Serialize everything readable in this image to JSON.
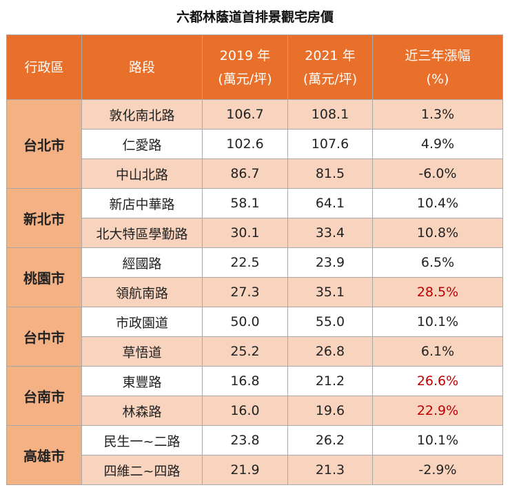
{
  "title": "六都林蔭道首排景觀宅房價",
  "chart_data": {
    "type": "table",
    "title": "六都林蔭道首排景觀宅房價",
    "columns": [
      "行政區",
      "路段",
      "2019 年\n(萬元/坪)",
      "2021 年\n(萬元/坪)",
      "近三年漲幅\n(%)"
    ],
    "header": {
      "c0": "行政區",
      "c1": "路段",
      "c2a": "2019 年",
      "c2b": "(萬元/坪)",
      "c3a": "2021 年",
      "c3b": "(萬元/坪)",
      "c4a": "近三年漲幅",
      "c4b": "(%)"
    },
    "highlight_color": "#C00000",
    "header_color": "#E8702A",
    "rows": [
      {
        "city": "台北市",
        "road": "敦化南北路",
        "y2019": "106.7",
        "y2021": "108.1",
        "change": "1.3%",
        "highlight": false
      },
      {
        "city": "台北市",
        "road": "仁愛路",
        "y2019": "102.6",
        "y2021": "107.6",
        "change": "4.9%",
        "highlight": false
      },
      {
        "city": "台北市",
        "road": "中山北路",
        "y2019": "86.7",
        "y2021": "81.5",
        "change": "-6.0%",
        "highlight": false
      },
      {
        "city": "新北市",
        "road": "新店中華路",
        "y2019": "58.1",
        "y2021": "64.1",
        "change": "10.4%",
        "highlight": false
      },
      {
        "city": "新北市",
        "road": "北大特區學勤路",
        "y2019": "30.1",
        "y2021": "33.4",
        "change": "10.8%",
        "highlight": false
      },
      {
        "city": "桃園市",
        "road": "經國路",
        "y2019": "22.5",
        "y2021": "23.9",
        "change": "6.5%",
        "highlight": false
      },
      {
        "city": "桃園市",
        "road": "領航南路",
        "y2019": "27.3",
        "y2021": "35.1",
        "change": "28.5%",
        "highlight": true
      },
      {
        "city": "台中市",
        "road": "市政園道",
        "y2019": "50.0",
        "y2021": "55.0",
        "change": "10.1%",
        "highlight": false
      },
      {
        "city": "台中市",
        "road": "草悟道",
        "y2019": "25.2",
        "y2021": "26.8",
        "change": "6.1%",
        "highlight": false
      },
      {
        "city": "台南市",
        "road": "東豐路",
        "y2019": "16.8",
        "y2021": "21.2",
        "change": "26.6%",
        "highlight": true
      },
      {
        "city": "台南市",
        "road": "林森路",
        "y2019": "16.0",
        "y2021": "19.6",
        "change": "22.9%",
        "highlight": true
      },
      {
        "city": "高雄市",
        "road": "民生一~二路",
        "y2019": "23.8",
        "y2021": "26.2",
        "change": "10.1%",
        "highlight": false
      },
      {
        "city": "高雄市",
        "road": "四維二~四路",
        "y2019": "21.9",
        "y2021": "21.3",
        "change": "-2.9%",
        "highlight": false
      }
    ]
  }
}
